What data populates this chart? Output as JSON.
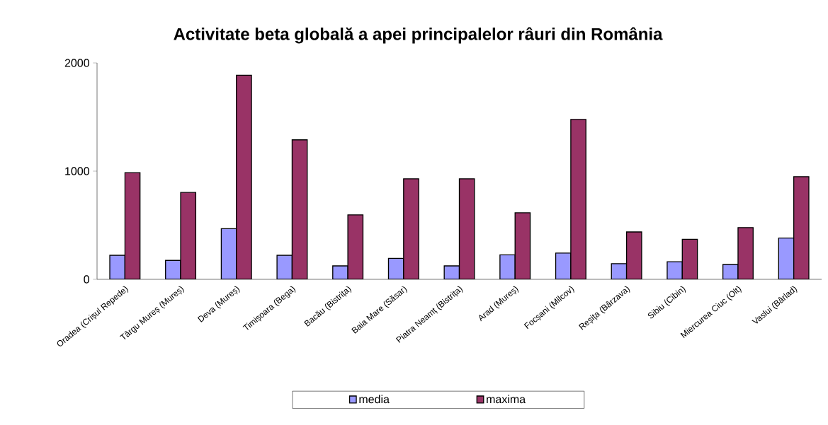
{
  "chart_data": {
    "type": "bar",
    "title": "Activitate beta globală a apei principalelor râuri din România",
    "categories": [
      "Oradea (Crișul Repede)",
      "Târgu Mureș (Mureș)",
      "Deva (Mureș)",
      "Timișoara (Bega)",
      "Bacău (Bistrița)",
      "Baia Mare (Săsar)",
      "Piatra Neamț (Bistrița)",
      "Arad (Mureș)",
      "Focșani (Milcov)",
      "Reșița (Bârzava)",
      "Sibiu (Cibin)",
      "Miercurea Ciuc (Olt)",
      "Vaslui (Bârlad)"
    ],
    "series": [
      {
        "name": "media",
        "color": "#9999ff",
        "values": [
          222,
          175,
          469,
          222,
          124,
          194,
          124,
          226,
          243,
          145,
          163,
          137,
          381
        ]
      },
      {
        "name": "maxima",
        "color": "#993366",
        "values": [
          986,
          803,
          1887,
          1289,
          596,
          929,
          929,
          615,
          1478,
          438,
          370,
          478,
          949
        ]
      }
    ],
    "ylim": [
      0,
      2000
    ],
    "yticks": [
      0,
      1000,
      2000
    ],
    "legend": "bottom"
  }
}
